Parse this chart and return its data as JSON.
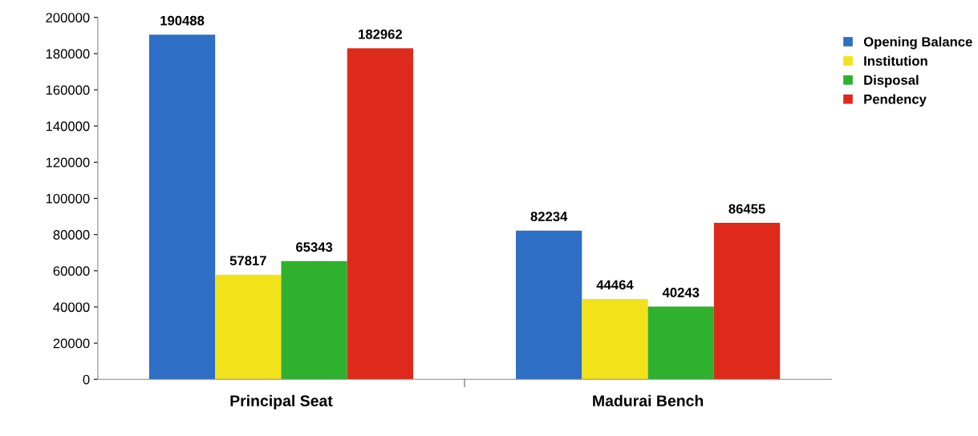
{
  "chart_data": {
    "type": "bar",
    "categories": [
      "Principal Seat",
      "Madurai Bench"
    ],
    "series": [
      {
        "name": "Opening Balance",
        "color": "#2e6ec4",
        "values": [
          190488,
          82234
        ]
      },
      {
        "name": "Institution",
        "color": "#f2e21a",
        "values": [
          57817,
          44464
        ]
      },
      {
        "name": "Disposal",
        "color": "#2fb02f",
        "values": [
          65343,
          40243
        ]
      },
      {
        "name": "Pendency",
        "color": "#dd2a1a",
        "values": [
          182962,
          86455
        ]
      }
    ],
    "ylim": [
      0,
      200000
    ],
    "yticks": [
      0,
      20000,
      40000,
      60000,
      80000,
      100000,
      120000,
      140000,
      160000,
      180000,
      200000
    ],
    "data_labels": true,
    "grid": false,
    "legend": "top right"
  }
}
